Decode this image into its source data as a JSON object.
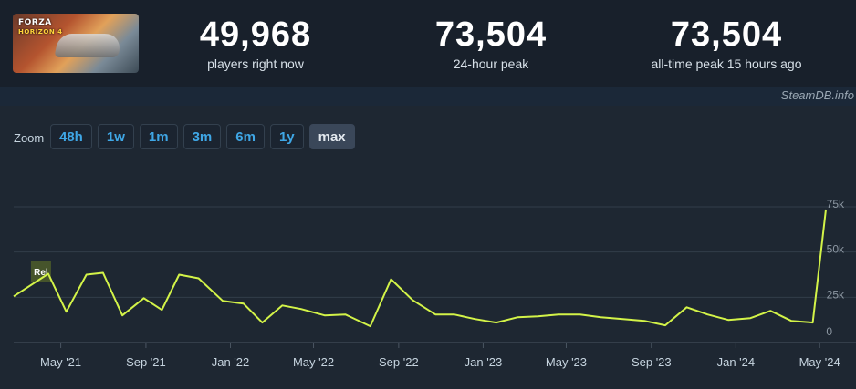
{
  "game": {
    "logo_brand": "FORZA",
    "logo_sub": "HORIZON 4"
  },
  "stats": [
    {
      "value": "49,968",
      "label": "players right now"
    },
    {
      "value": "73,504",
      "label": "24-hour peak"
    },
    {
      "value": "73,504",
      "label": "all-time peak 15 hours ago"
    }
  ],
  "credit": "SteamDB.info",
  "zoom": {
    "label": "Zoom",
    "options": [
      "48h",
      "1w",
      "1m",
      "3m",
      "6m",
      "1y",
      "max"
    ],
    "selected": "max"
  },
  "chart_data": {
    "type": "line",
    "series": [
      {
        "points": [
          [
            "2021-02-22",
            25500
          ],
          [
            "2021-04-13",
            38000
          ],
          [
            "2021-05-09",
            17000
          ],
          [
            "2021-06-07",
            37500
          ],
          [
            "2021-07-01",
            38500
          ],
          [
            "2021-07-29",
            15000
          ],
          [
            "2021-08-29",
            24500
          ],
          [
            "2021-09-24",
            18000
          ],
          [
            "2021-10-19",
            37500
          ],
          [
            "2021-11-16",
            35500
          ],
          [
            "2021-12-21",
            23000
          ],
          [
            "2022-01-20",
            21500
          ],
          [
            "2022-02-16",
            11000
          ],
          [
            "2022-03-17",
            20500
          ],
          [
            "2022-04-13",
            18500
          ],
          [
            "2022-05-17",
            15000
          ],
          [
            "2022-06-16",
            15500
          ],
          [
            "2022-07-22",
            9000
          ],
          [
            "2022-08-21",
            35000
          ],
          [
            "2022-09-21",
            23500
          ],
          [
            "2022-10-24",
            15500
          ],
          [
            "2022-11-20",
            15500
          ],
          [
            "2022-12-20",
            13000
          ],
          [
            "2023-01-20",
            11000
          ],
          [
            "2023-02-20",
            14000
          ],
          [
            "2023-03-21",
            14500
          ],
          [
            "2023-04-20",
            15500
          ],
          [
            "2023-05-21",
            15500
          ],
          [
            "2023-06-20",
            14000
          ],
          [
            "2023-07-22",
            13000
          ],
          [
            "2023-08-22",
            12000
          ],
          [
            "2023-09-21",
            9500
          ],
          [
            "2023-10-22",
            19500
          ],
          [
            "2023-11-21",
            15500
          ],
          [
            "2023-12-21",
            12500
          ],
          [
            "2024-01-22",
            13500
          ],
          [
            "2024-02-20",
            17500
          ],
          [
            "2024-03-21",
            12000
          ],
          [
            "2024-04-21",
            11000
          ],
          [
            "2024-05-10",
            73504
          ]
        ],
        "color": "#d3f348"
      }
    ],
    "x_tick_labels": [
      "May '21",
      "Sep '21",
      "Jan '22",
      "May '22",
      "Sep '22",
      "Jan '23",
      "May '23",
      "Sep '23",
      "Jan '24",
      "May '24"
    ],
    "x_ticks": [
      "2021-05-01",
      "2021-09-01",
      "2022-01-01",
      "2022-05-01",
      "2022-09-01",
      "2023-01-01",
      "2023-05-01",
      "2023-09-01",
      "2024-01-01",
      "2024-05-01"
    ],
    "y_tick_labels": [
      "0",
      "25k",
      "50k",
      "75k"
    ],
    "y_ticks": [
      0,
      25000,
      50000,
      75000
    ],
    "ylim": [
      0,
      75000
    ],
    "xlim": [
      "2021-02-22",
      "2024-05-10"
    ],
    "grid": true,
    "annotations": [
      {
        "text": "Rel",
        "date": "2021-04-13"
      }
    ]
  }
}
